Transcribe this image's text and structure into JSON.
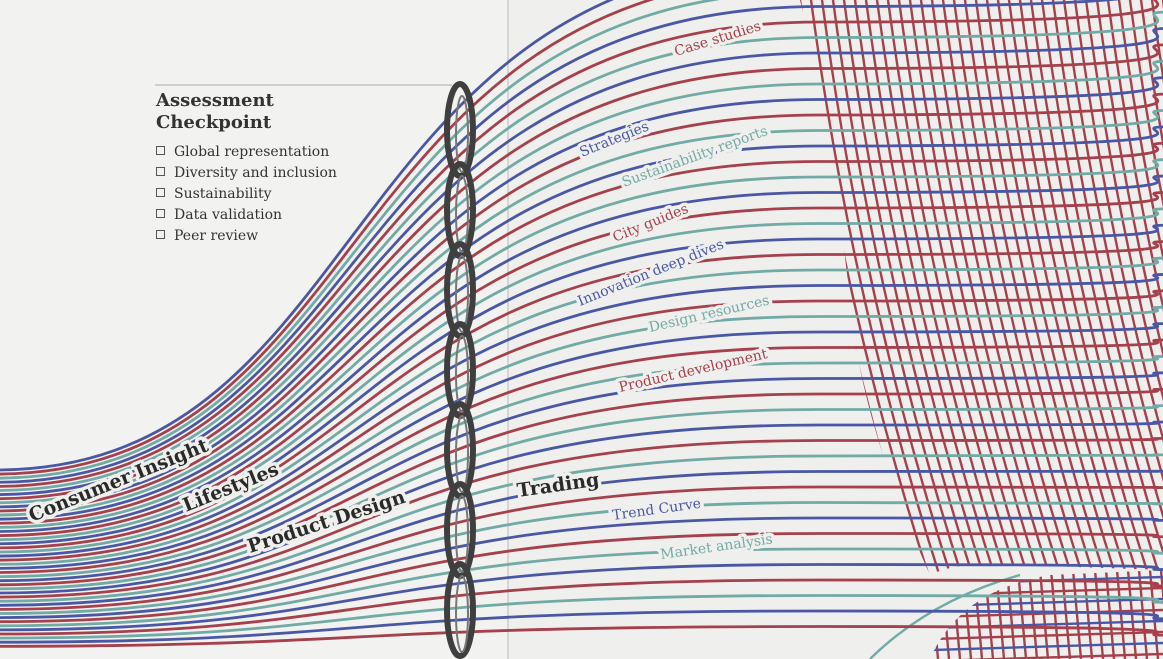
{
  "checkpoint": {
    "title": "Assessment Checkpoint",
    "items": [
      "Global representation",
      "Diversity and inclusion",
      "Sustainability",
      "Data validation",
      "Peer review"
    ]
  },
  "streams": [
    "Consumer Insight",
    "Lifestyles",
    "Product Design",
    "Trading"
  ],
  "topics": [
    "Case studies",
    "Strategies",
    "Sustainability reports",
    "City guides",
    "Innovation deep dives",
    "Design resources",
    "Product development",
    "Trend Curve",
    "Market analysis"
  ]
}
